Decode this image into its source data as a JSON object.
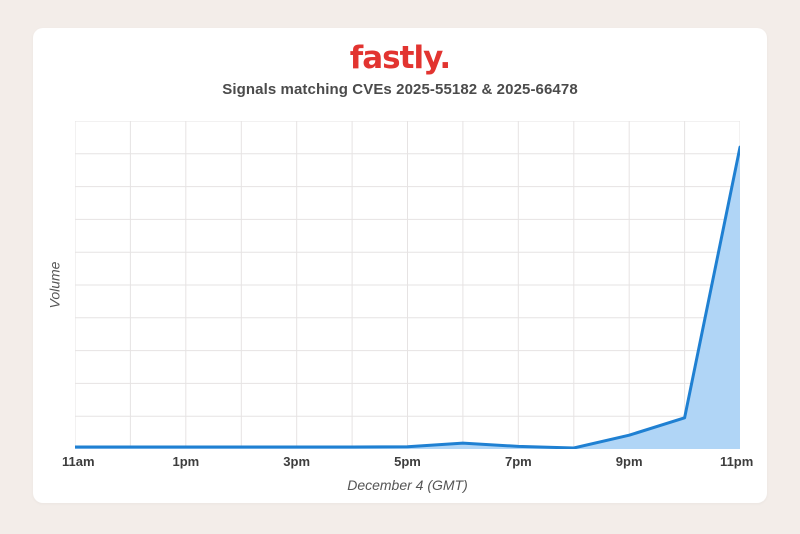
{
  "header": {
    "logo_text": "fastly.",
    "logo_color": "#e23430"
  },
  "chart_data": {
    "type": "area",
    "title": "Signals matching CVEs 2025-55182 & 2025-66478",
    "xlabel": "December 4 (GMT)",
    "ylabel": "Volume",
    "x_unit": "hour of day (24h clock)",
    "x": [
      11,
      12,
      13,
      14,
      15,
      16,
      17,
      18,
      19,
      20,
      21,
      22,
      23
    ],
    "values": [
      0.06,
      0.06,
      0.06,
      0.06,
      0.06,
      0.06,
      0.07,
      0.18,
      0.08,
      0.03,
      0.42,
      0.95,
      9.2
    ],
    "x_ticks": [
      {
        "value": 11,
        "label": "11am"
      },
      {
        "value": 13,
        "label": "1pm"
      },
      {
        "value": 15,
        "label": "3pm"
      },
      {
        "value": 17,
        "label": "5pm"
      },
      {
        "value": 19,
        "label": "7pm"
      },
      {
        "value": 21,
        "label": "9pm"
      },
      {
        "value": 23,
        "label": "11pm"
      }
    ],
    "xlim": [
      11,
      23
    ],
    "ylim": [
      0,
      10
    ],
    "grid": true,
    "grid_x_step": 1,
    "grid_y_step": 1,
    "legend": "none",
    "line_color": "#1f80d2",
    "fill_color": "#b0d5f6",
    "grid_color": "#e6e3e3"
  }
}
